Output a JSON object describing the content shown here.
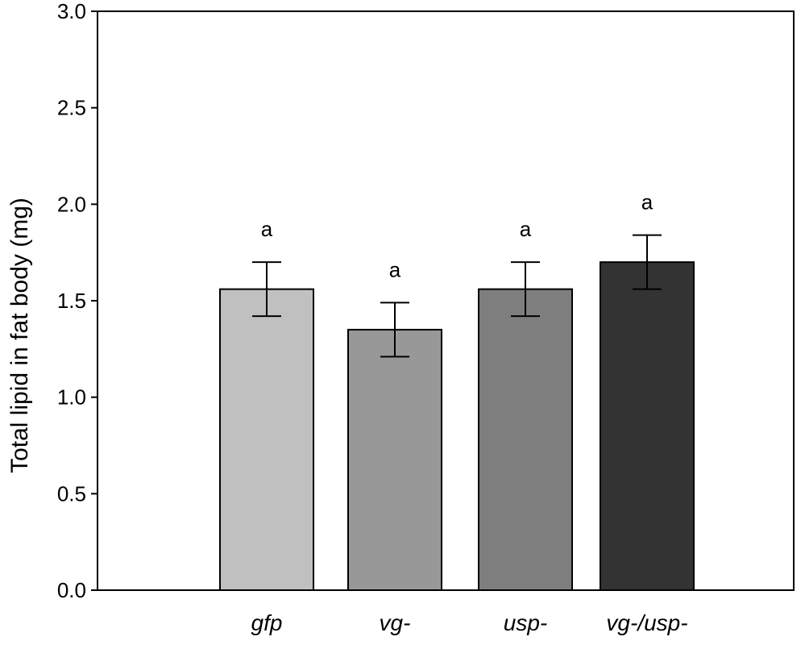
{
  "chart_data": {
    "type": "bar",
    "title": "",
    "xlabel": "",
    "ylabel": "Total lipid in fat body (mg)",
    "ylim": [
      0,
      3.0
    ],
    "yticks": [
      "0.0",
      "0.5",
      "1.0",
      "1.5",
      "2.0",
      "2.5",
      "3.0"
    ],
    "ytick_values": [
      0,
      0.5,
      1.0,
      1.5,
      2.0,
      2.5,
      3.0
    ],
    "categories": [
      "gfp",
      "vg-",
      "usp-",
      "vg-/usp-"
    ],
    "values": [
      1.56,
      1.35,
      1.56,
      1.7
    ],
    "errors": [
      0.14,
      0.14,
      0.14,
      0.14
    ],
    "significance_labels": [
      "a",
      "a",
      "a",
      "a"
    ],
    "bar_colors": [
      "#c0c0c0",
      "#989898",
      "#7e7e7e",
      "#333333"
    ],
    "grid": false,
    "legend": "none"
  }
}
